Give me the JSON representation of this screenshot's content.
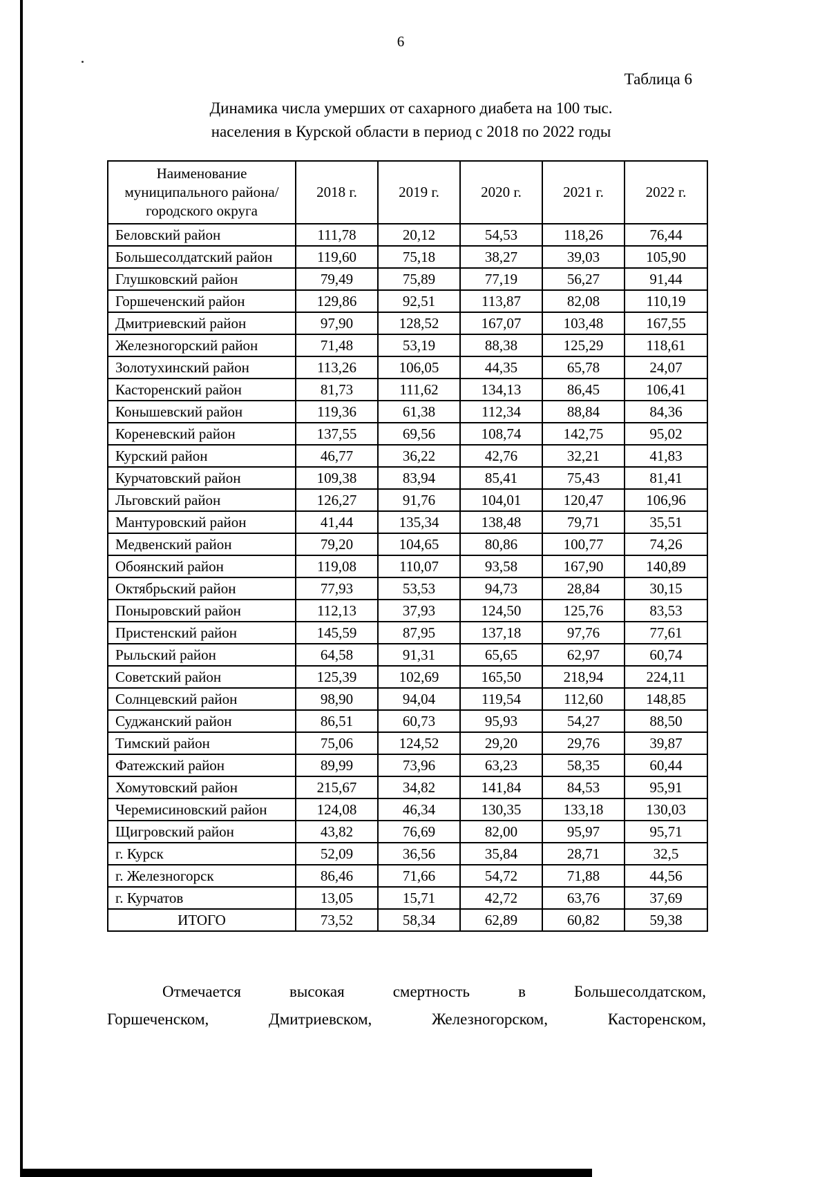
{
  "page": {
    "number": "6",
    "table_label": "Таблица 6",
    "title_line1": "Динамика числа умерших от сахарного диабета на 100 тыс.",
    "title_line2": "населения в Курской области в период с 2018 по 2022 годы"
  },
  "table": {
    "header": {
      "name_column": "Наименование муниципального района/ городского округа",
      "years": [
        "2018 г.",
        "2019 г.",
        "2020 г.",
        "2021 г.",
        "2022 г."
      ]
    },
    "rows": [
      {
        "name": "Беловский район",
        "values": [
          "111,78",
          "20,12",
          "54,53",
          "118,26",
          "76,44"
        ]
      },
      {
        "name": "Большесолдатский район",
        "values": [
          "119,60",
          "75,18",
          "38,27",
          "39,03",
          "105,90"
        ]
      },
      {
        "name": "Глушковский район",
        "values": [
          "79,49",
          "75,89",
          "77,19",
          "56,27",
          "91,44"
        ]
      },
      {
        "name": "Горшеченский район",
        "values": [
          "129,86",
          "92,51",
          "113,87",
          "82,08",
          "110,19"
        ]
      },
      {
        "name": "Дмитриевский район",
        "values": [
          "97,90",
          "128,52",
          "167,07",
          "103,48",
          "167,55"
        ]
      },
      {
        "name": "Железногорский район",
        "values": [
          "71,48",
          "53,19",
          "88,38",
          "125,29",
          "118,61"
        ]
      },
      {
        "name": "Золотухинский район",
        "values": [
          "113,26",
          "106,05",
          "44,35",
          "65,78",
          "24,07"
        ]
      },
      {
        "name": "Касторенский район",
        "values": [
          "81,73",
          "111,62",
          "134,13",
          "86,45",
          "106,41"
        ]
      },
      {
        "name": "Конышевский район",
        "values": [
          "119,36",
          "61,38",
          "112,34",
          "88,84",
          "84,36"
        ]
      },
      {
        "name": "Кореневский район",
        "values": [
          "137,55",
          "69,56",
          "108,74",
          "142,75",
          "95,02"
        ]
      },
      {
        "name": "Курский район",
        "values": [
          "46,77",
          "36,22",
          "42,76",
          "32,21",
          "41,83"
        ]
      },
      {
        "name": "Курчатовский район",
        "values": [
          "109,38",
          "83,94",
          "85,41",
          "75,43",
          "81,41"
        ]
      },
      {
        "name": "Льговский район",
        "values": [
          "126,27",
          "91,76",
          "104,01",
          "120,47",
          "106,96"
        ]
      },
      {
        "name": "Мантуровский район",
        "values": [
          "41,44",
          "135,34",
          "138,48",
          "79,71",
          "35,51"
        ]
      },
      {
        "name": "Медвенский район",
        "values": [
          "79,20",
          "104,65",
          "80,86",
          "100,77",
          "74,26"
        ]
      },
      {
        "name": "Обоянский район",
        "values": [
          "119,08",
          "110,07",
          "93,58",
          "167,90",
          "140,89"
        ]
      },
      {
        "name": "Октябрьский район",
        "values": [
          "77,93",
          "53,53",
          "94,73",
          "28,84",
          "30,15"
        ]
      },
      {
        "name": "Поныровский район",
        "values": [
          "112,13",
          "37,93",
          "124,50",
          "125,76",
          "83,53"
        ]
      },
      {
        "name": "Пристенский район",
        "values": [
          "145,59",
          "87,95",
          "137,18",
          "97,76",
          "77,61"
        ]
      },
      {
        "name": "Рыльский район",
        "values": [
          "64,58",
          "91,31",
          "65,65",
          "62,97",
          "60,74"
        ]
      },
      {
        "name": "Советский район",
        "values": [
          "125,39",
          "102,69",
          "165,50",
          "218,94",
          "224,11"
        ]
      },
      {
        "name": "Солнцевский район",
        "values": [
          "98,90",
          "94,04",
          "119,54",
          "112,60",
          "148,85"
        ]
      },
      {
        "name": "Суджанский район",
        "values": [
          "86,51",
          "60,73",
          "95,93",
          "54,27",
          "88,50"
        ]
      },
      {
        "name": "Тимский район",
        "values": [
          "75,06",
          "124,52",
          "29,20",
          "29,76",
          "39,87"
        ]
      },
      {
        "name": "Фатежский район",
        "values": [
          "89,99",
          "73,96",
          "63,23",
          "58,35",
          "60,44"
        ]
      },
      {
        "name": "Хомутовский район",
        "values": [
          "215,67",
          "34,82",
          "141,84",
          "84,53",
          "95,91"
        ]
      },
      {
        "name": "Черемисиновский район",
        "values": [
          "124,08",
          "46,34",
          "130,35",
          "133,18",
          "130,03"
        ]
      },
      {
        "name": "Щигровский район",
        "values": [
          "43,82",
          "76,69",
          "82,00",
          "95,97",
          "95,71"
        ]
      },
      {
        "name": "г. Курск",
        "values": [
          "52,09",
          "36,56",
          "35,84",
          "28,71",
          "32,5"
        ]
      },
      {
        "name": "г. Железногорск",
        "values": [
          "86,46",
          "71,66",
          "54,72",
          "71,88",
          "44,56"
        ]
      },
      {
        "name": "г. Курчатов",
        "values": [
          "13,05",
          "15,71",
          "42,72",
          "63,76",
          "37,69"
        ]
      }
    ],
    "total": {
      "label": "ИТОГО",
      "values": [
        "73,52",
        "58,34",
        "62,89",
        "60,82",
        "59,38"
      ]
    }
  },
  "footer": {
    "line1": "Отмечается высокая смертность в Большесолдатском,",
    "line2": "Горшеченском, Дмитриевском, Железногорском, Касторенском,"
  }
}
